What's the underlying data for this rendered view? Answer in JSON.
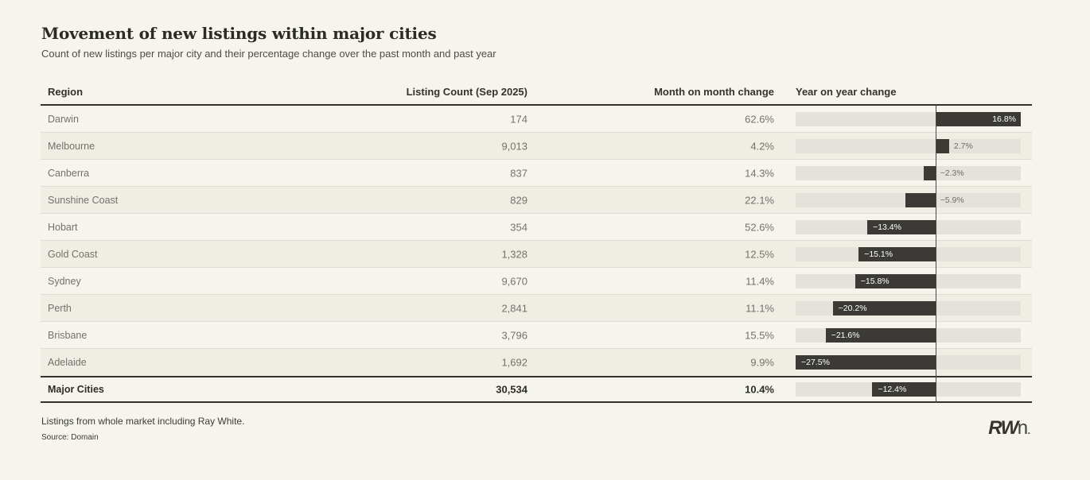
{
  "header": {
    "title": "Movement of new listings within major cities",
    "subtitle": "Count of new listings per major city and their percentage change over the past month and past year"
  },
  "table": {
    "columns": {
      "region": "Region",
      "count": "Listing Count (Sep 2025)",
      "mom": "Month on month change",
      "yoy": "Year on year change"
    },
    "rows": [
      {
        "region": "Darwin",
        "count": "174",
        "mom": "62.6%",
        "yoy": 16.8,
        "yoy_label": "16.8%"
      },
      {
        "region": "Melbourne",
        "count": "9,013",
        "mom": "4.2%",
        "yoy": 2.7,
        "yoy_label": "2.7%"
      },
      {
        "region": "Canberra",
        "count": "837",
        "mom": "14.3%",
        "yoy": -2.3,
        "yoy_label": "−2.3%"
      },
      {
        "region": "Sunshine Coast",
        "count": "829",
        "mom": "22.1%",
        "yoy": -5.9,
        "yoy_label": "−5.9%"
      },
      {
        "region": "Hobart",
        "count": "354",
        "mom": "52.6%",
        "yoy": -13.4,
        "yoy_label": "−13.4%"
      },
      {
        "region": "Gold Coast",
        "count": "1,328",
        "mom": "12.5%",
        "yoy": -15.1,
        "yoy_label": "−15.1%"
      },
      {
        "region": "Sydney",
        "count": "9,670",
        "mom": "11.4%",
        "yoy": -15.8,
        "yoy_label": "−15.8%"
      },
      {
        "region": "Perth",
        "count": "2,841",
        "mom": "11.1%",
        "yoy": -20.2,
        "yoy_label": "−20.2%"
      },
      {
        "region": "Brisbane",
        "count": "3,796",
        "mom": "15.5%",
        "yoy": -21.6,
        "yoy_label": "−21.6%"
      },
      {
        "region": "Adelaide",
        "count": "1,692",
        "mom": "9.9%",
        "yoy": -27.5,
        "yoy_label": "−27.5%"
      }
    ],
    "total_row": {
      "region": "Major Cities",
      "count": "30,534",
      "mom": "10.4%",
      "yoy": -12.4,
      "yoy_label": "−12.4%"
    }
  },
  "chart_data": {
    "type": "bar",
    "orientation": "horizontal",
    "title": "Movement of new listings within major cities",
    "subtitle": "Count of new listings per major city and their percentage change over the past month and past year",
    "categories": [
      "Darwin",
      "Melbourne",
      "Canberra",
      "Sunshine Coast",
      "Hobart",
      "Gold Coast",
      "Sydney",
      "Perth",
      "Brisbane",
      "Adelaide",
      "Major Cities"
    ],
    "series": [
      {
        "name": "Listing Count (Sep 2025)",
        "values": [
          174,
          9013,
          837,
          829,
          354,
          1328,
          9670,
          2841,
          3796,
          1692,
          30534
        ]
      },
      {
        "name": "Month on month change (%)",
        "values": [
          62.6,
          4.2,
          14.3,
          22.1,
          52.6,
          12.5,
          11.4,
          11.1,
          15.5,
          9.9,
          10.4
        ]
      },
      {
        "name": "Year on year change (%)",
        "values": [
          16.8,
          2.7,
          -2.3,
          -5.9,
          -13.4,
          -15.1,
          -15.8,
          -20.2,
          -21.6,
          -27.5,
          -12.4
        ]
      }
    ],
    "bar_series_plotted": "Year on year change (%)",
    "xlim": [
      -27.5,
      16.8
    ],
    "zero_axis_line": true,
    "grid": false,
    "legend": false
  },
  "footer": {
    "note1": "Listings from whole market including Ray White.",
    "note2": "Source: Domain"
  },
  "logo": {
    "rw": "RW",
    "n": "n",
    "dot": "."
  },
  "colors": {
    "background": "#f6f5ed",
    "row_alt": "#efeee5",
    "bar_track": "#e4e3db",
    "bar_fill": "#3b3a36",
    "dark_text": "#2e2d28",
    "body_text": "#73716a",
    "border_dark": "#32312c",
    "border_light": "#deddd4"
  }
}
